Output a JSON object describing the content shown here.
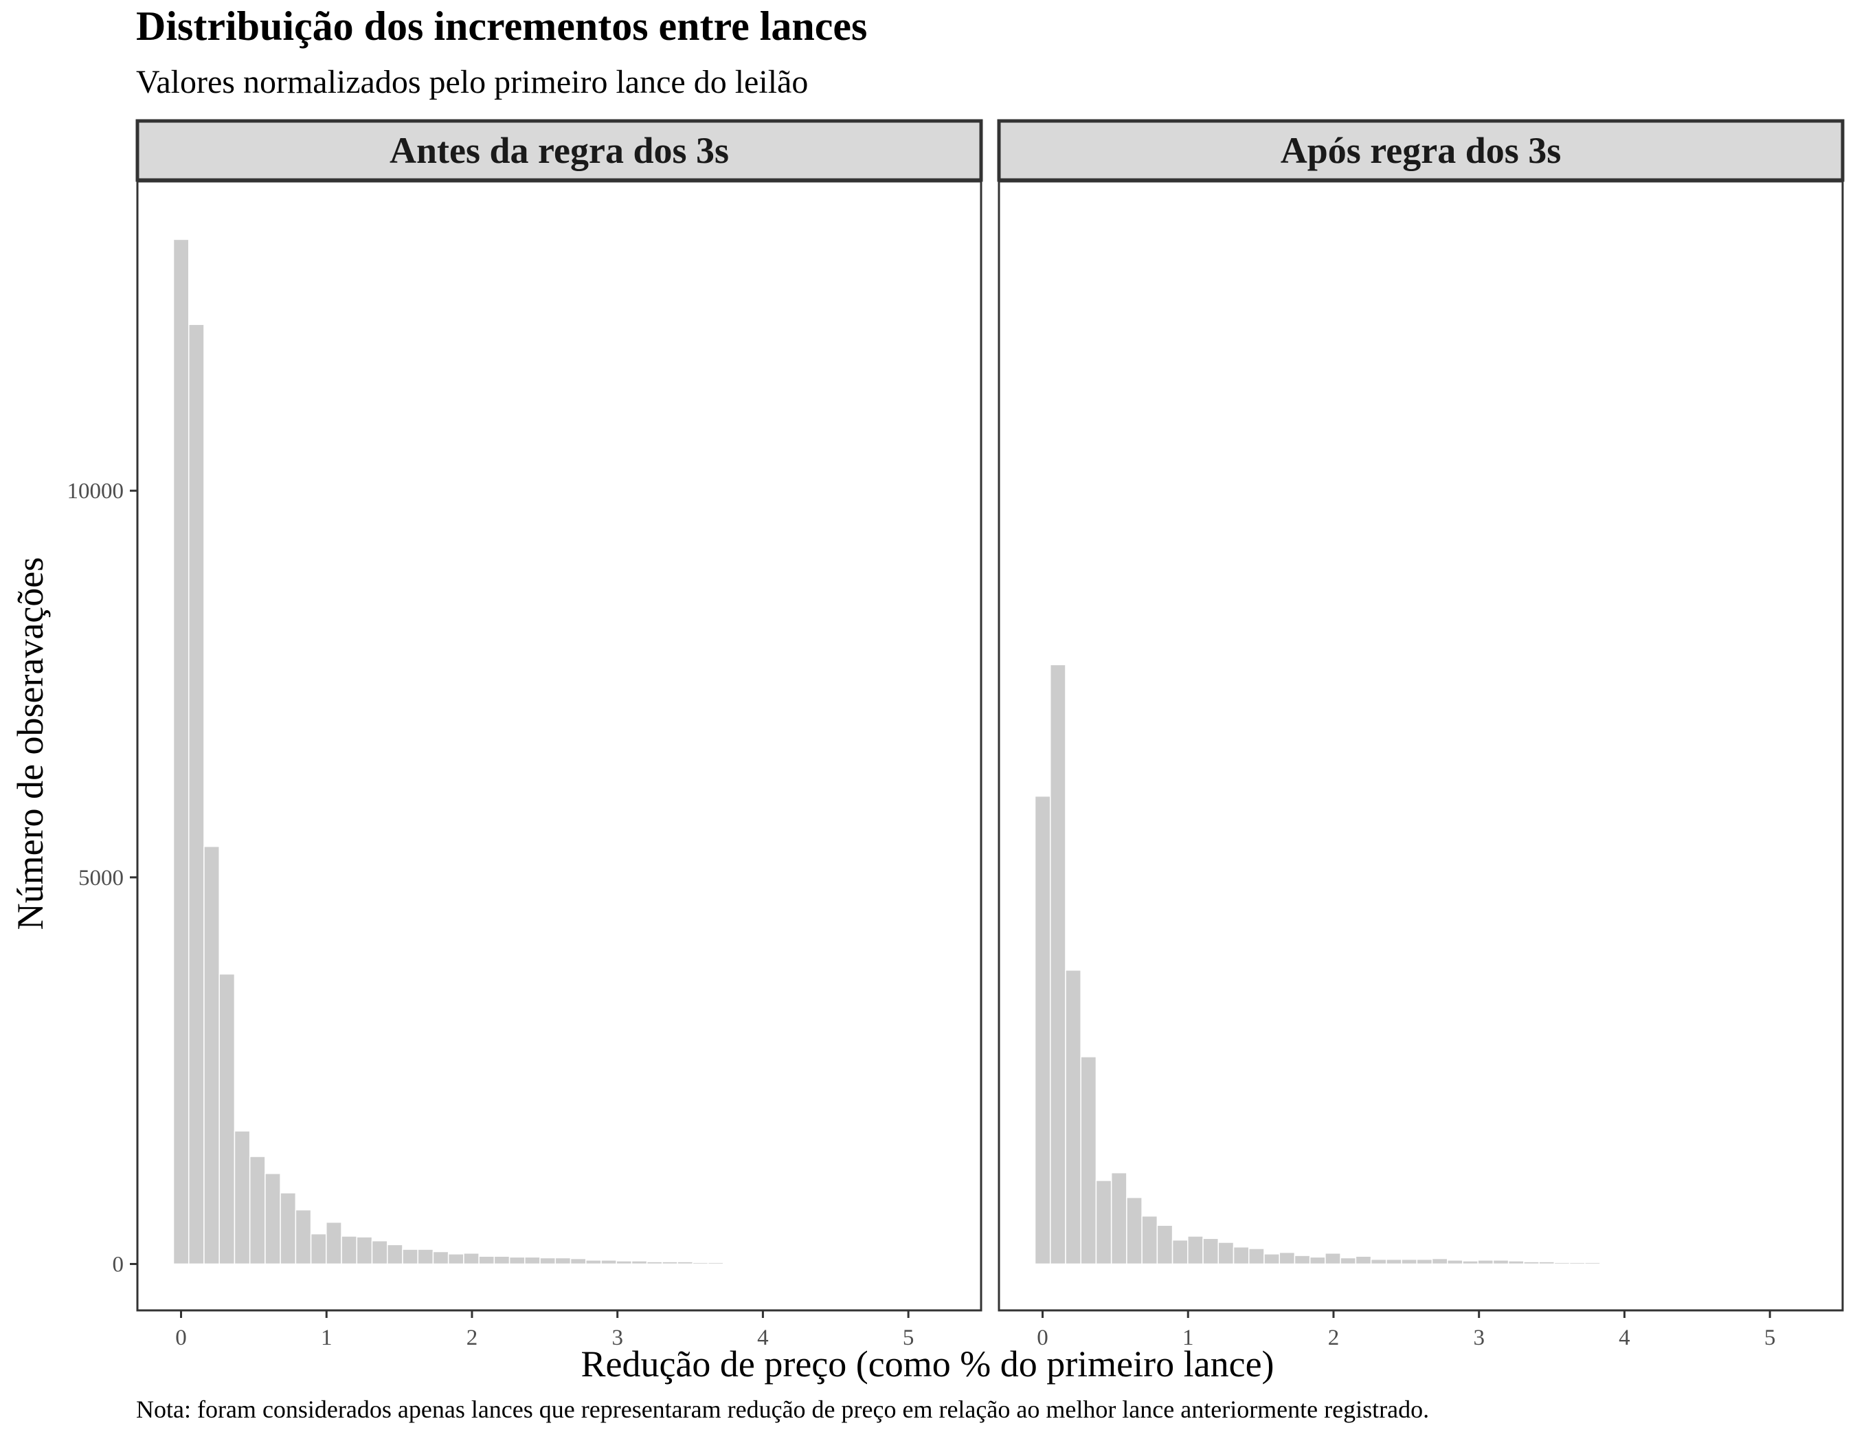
{
  "chart_data": {
    "type": "bar",
    "title": "Distribuição dos incrementos entre lances",
    "subtitle": "Valores normalizados pelo primeiro lance do leilão",
    "caption": "Nota: foram considerados apenas lances que representaram redução de preço em relação ao melhor lance anteriormente registrado.",
    "xlabel": "Redução de preço (como % do primeiro lance)",
    "ylabel": "Número de obseravações",
    "xlim": [
      -0.3,
      5.5
    ],
    "ylim": [
      -600,
      14000
    ],
    "x_ticks": [
      0,
      1,
      2,
      3,
      4,
      5
    ],
    "y_ticks": [
      0,
      5000,
      10000
    ],
    "bin_width": 0.105,
    "bar_color": "#cccccc",
    "panels": [
      {
        "label": "Antes da regra dos 3s",
        "bin_starts": [
          -0.052,
          0.053,
          0.158,
          0.263,
          0.368,
          0.473,
          0.578,
          0.683,
          0.788,
          0.893,
          0.998,
          1.103,
          1.208,
          1.313,
          1.418,
          1.523,
          1.628,
          1.733,
          1.838,
          1.943,
          2.048,
          2.153,
          2.258,
          2.363,
          2.468,
          2.573,
          2.678,
          2.783,
          2.888,
          2.993,
          3.098,
          3.203,
          3.308,
          3.413,
          3.518,
          3.623,
          3.728
        ],
        "counts": [
          13250,
          12150,
          5400,
          3750,
          1720,
          1390,
          1170,
          920,
          700,
          390,
          540,
          360,
          350,
          300,
          250,
          190,
          190,
          160,
          130,
          140,
          100,
          100,
          90,
          90,
          80,
          80,
          70,
          50,
          50,
          40,
          40,
          30,
          30,
          30,
          20,
          20,
          10
        ]
      },
      {
        "label": "Após regra dos 3s",
        "bin_starts": [
          -0.052,
          0.053,
          0.158,
          0.263,
          0.368,
          0.473,
          0.578,
          0.683,
          0.788,
          0.893,
          0.998,
          1.103,
          1.208,
          1.313,
          1.418,
          1.523,
          1.628,
          1.733,
          1.838,
          1.943,
          2.048,
          2.153,
          2.258,
          2.363,
          2.468,
          2.573,
          2.678,
          2.783,
          2.888,
          2.993,
          3.098,
          3.203,
          3.308,
          3.413,
          3.518,
          3.623,
          3.728,
          3.833,
          3.938,
          4.043,
          4.148,
          4.253,
          4.358,
          4.463,
          4.568,
          4.673,
          4.778,
          4.883,
          4.988
        ],
        "counts": [
          6050,
          7750,
          3800,
          2680,
          1080,
          1180,
          860,
          620,
          500,
          310,
          360,
          330,
          280,
          220,
          200,
          130,
          150,
          110,
          90,
          140,
          80,
          100,
          60,
          60,
          60,
          60,
          70,
          50,
          40,
          50,
          50,
          40,
          30,
          30,
          20,
          20,
          20,
          10,
          10,
          10,
          10,
          10,
          10,
          5,
          10,
          10,
          5,
          5,
          10
        ]
      }
    ]
  }
}
